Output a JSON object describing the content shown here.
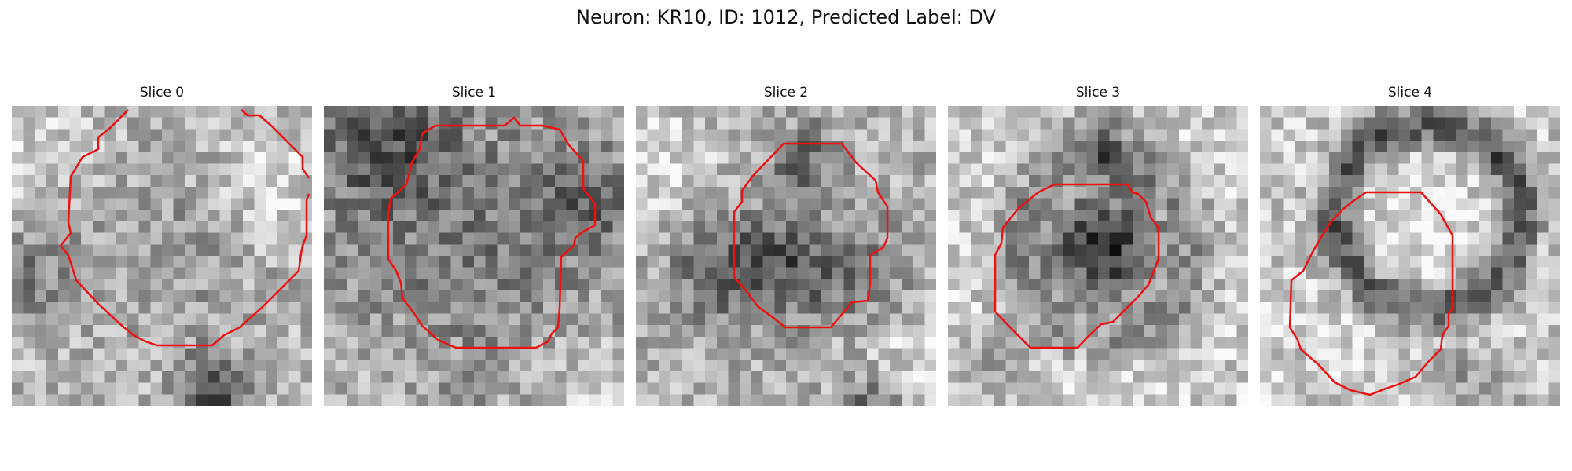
{
  "figure": {
    "title": "Neuron: KR10, ID: 1012, Predicted Label: DV"
  },
  "image": {
    "pixel_grid": 26,
    "colormap": "gray",
    "contour_color": "#ee1111"
  },
  "slices": [
    {
      "title": "Slice 0",
      "seed": 11,
      "pattern": "soma-light"
    },
    {
      "title": "Slice 1",
      "seed": 23,
      "pattern": "soma-gray"
    },
    {
      "title": "Slice 2",
      "seed": 37,
      "pattern": "blotch-dark"
    },
    {
      "title": "Slice 3",
      "seed": 53,
      "pattern": "dark-core"
    },
    {
      "title": "Slice 4",
      "seed": 71,
      "pattern": "dark-ring"
    }
  ]
}
